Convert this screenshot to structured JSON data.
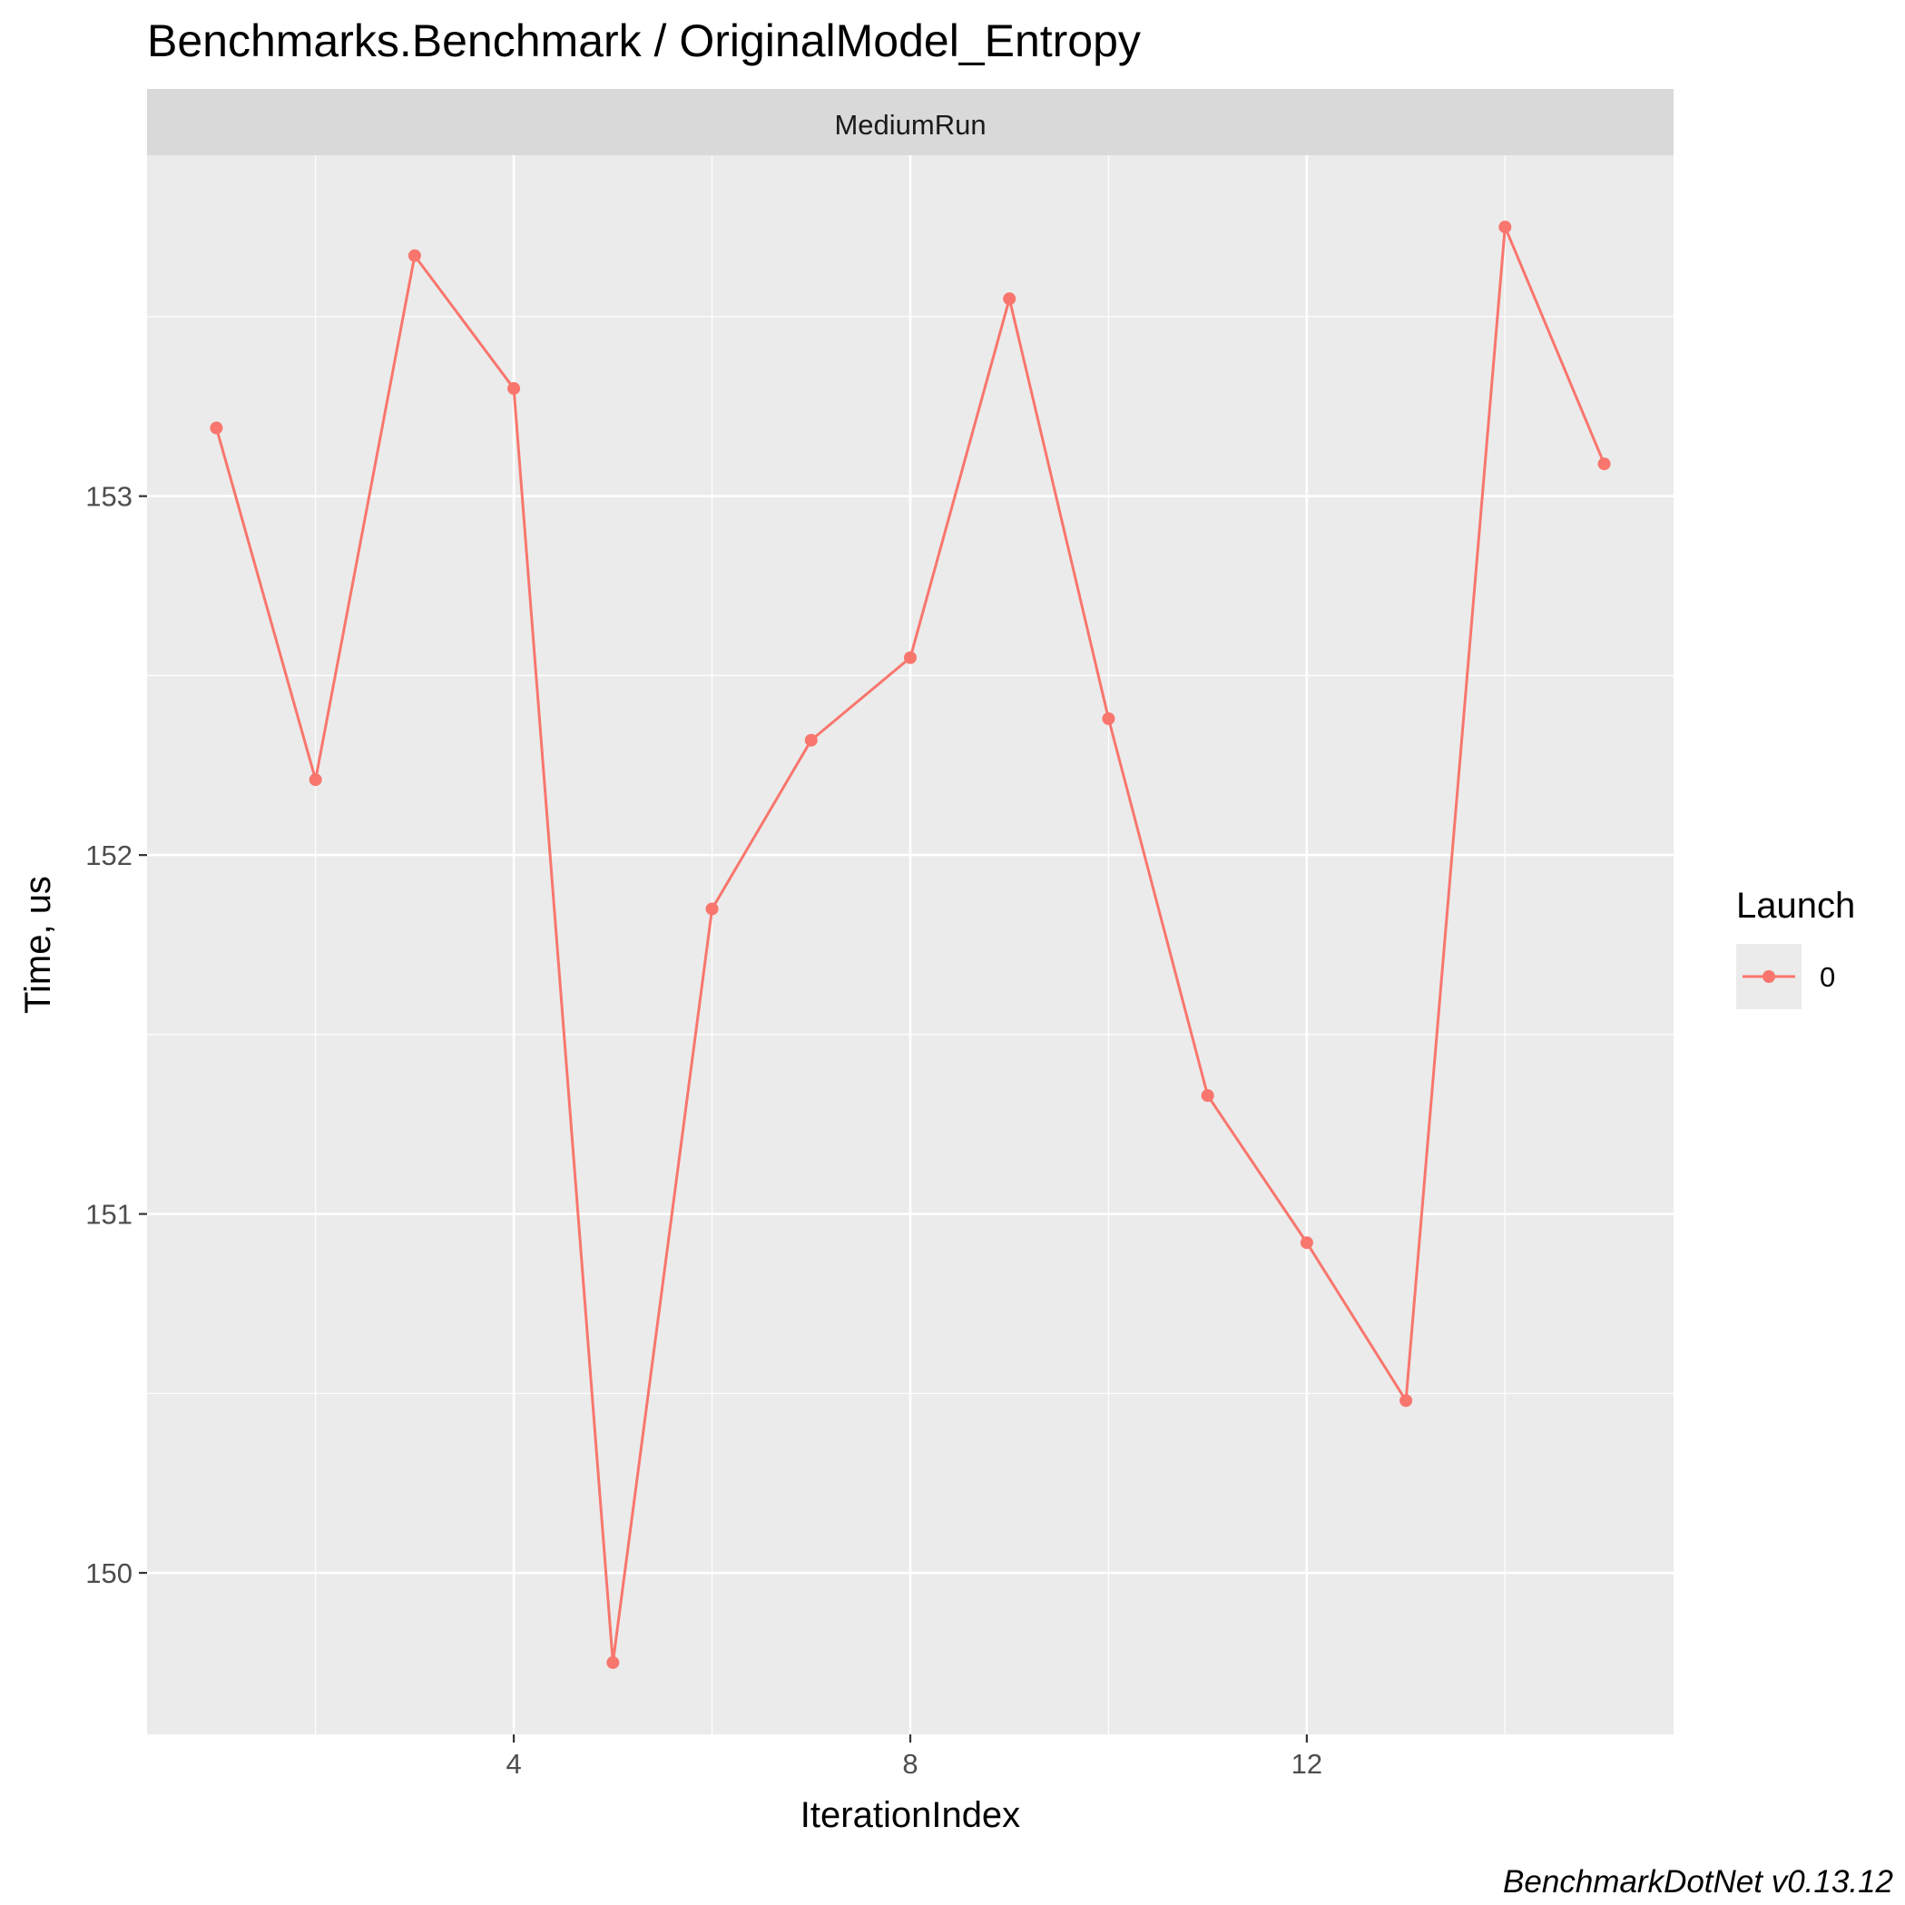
{
  "chart_data": {
    "type": "line",
    "title": "Benchmarks.Benchmark / OriginalModel_Entropy",
    "facet_label": "MediumRun",
    "xlabel": "IterationIndex",
    "ylabel": "Time, us",
    "x": [
      1,
      2,
      3,
      4,
      5,
      6,
      7,
      8,
      9,
      10,
      11,
      12,
      13,
      14,
      15
    ],
    "series": [
      {
        "name": "0",
        "color": "#F8766D",
        "values": [
          153.19,
          152.21,
          153.67,
          153.3,
          149.75,
          151.85,
          152.32,
          152.55,
          153.55,
          152.38,
          151.33,
          150.92,
          150.48,
          153.75,
          153.09
        ]
      }
    ],
    "xlim": [
      0.3,
      15.7
    ],
    "ylim": [
      149.55,
      153.95
    ],
    "x_ticks": [
      4,
      8,
      12
    ],
    "x_tick_labels": [
      "4",
      "8",
      "12"
    ],
    "y_ticks": [
      150,
      151,
      152,
      153
    ],
    "y_tick_labels": [
      "150",
      "151",
      "152",
      "153"
    ],
    "grid": true,
    "legend_title": "Launch",
    "legend_position": "right",
    "caption": "BenchmarkDotNet v0.13.12",
    "colors": {
      "panel_bg": "#EBEBEB",
      "strip_bg": "#D9D9D9",
      "grid": "#FFFFFF",
      "series": "#F8766D"
    }
  }
}
